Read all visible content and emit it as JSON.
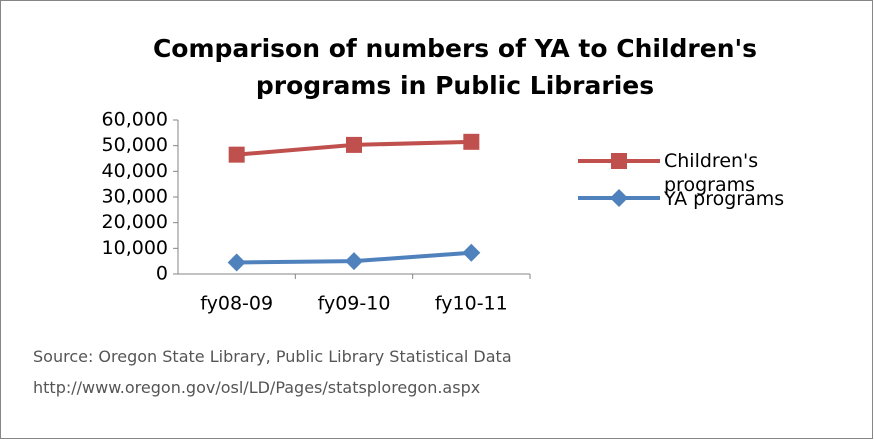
{
  "chart_data": {
    "type": "line",
    "title": "Comparison of numbers of YA to Children's programs in Public Libraries",
    "categories": [
      "fy08-09",
      "fy09-10",
      "fy10-11"
    ],
    "series": [
      {
        "name": "Children's programs",
        "color": "#c0504d",
        "marker": "square",
        "values": [
          46500,
          50300,
          51500
        ]
      },
      {
        "name": "YA programs",
        "color": "#4f81bd",
        "marker": "diamond",
        "values": [
          4500,
          5000,
          8300
        ]
      }
    ],
    "ylim": [
      0,
      60000
    ],
    "yticks": [
      0,
      {
        "value": 10000,
        "label": "10,000"
      },
      {
        "value": 20000,
        "label": "20,000"
      },
      {
        "value": 30000,
        "label": "30,000"
      },
      {
        "value": 40000,
        "label": "40,000"
      },
      {
        "value": 50000,
        "label": "50,000"
      },
      {
        "value": 60000,
        "label": "60,000"
      }
    ],
    "grid": false,
    "legend": "right",
    "annotations": [
      "Source: Oregon State Library, Public Library Statistical Data",
      "http://www.oregon.gov/osl/LD/Pages/statsploregon.aspx"
    ]
  }
}
